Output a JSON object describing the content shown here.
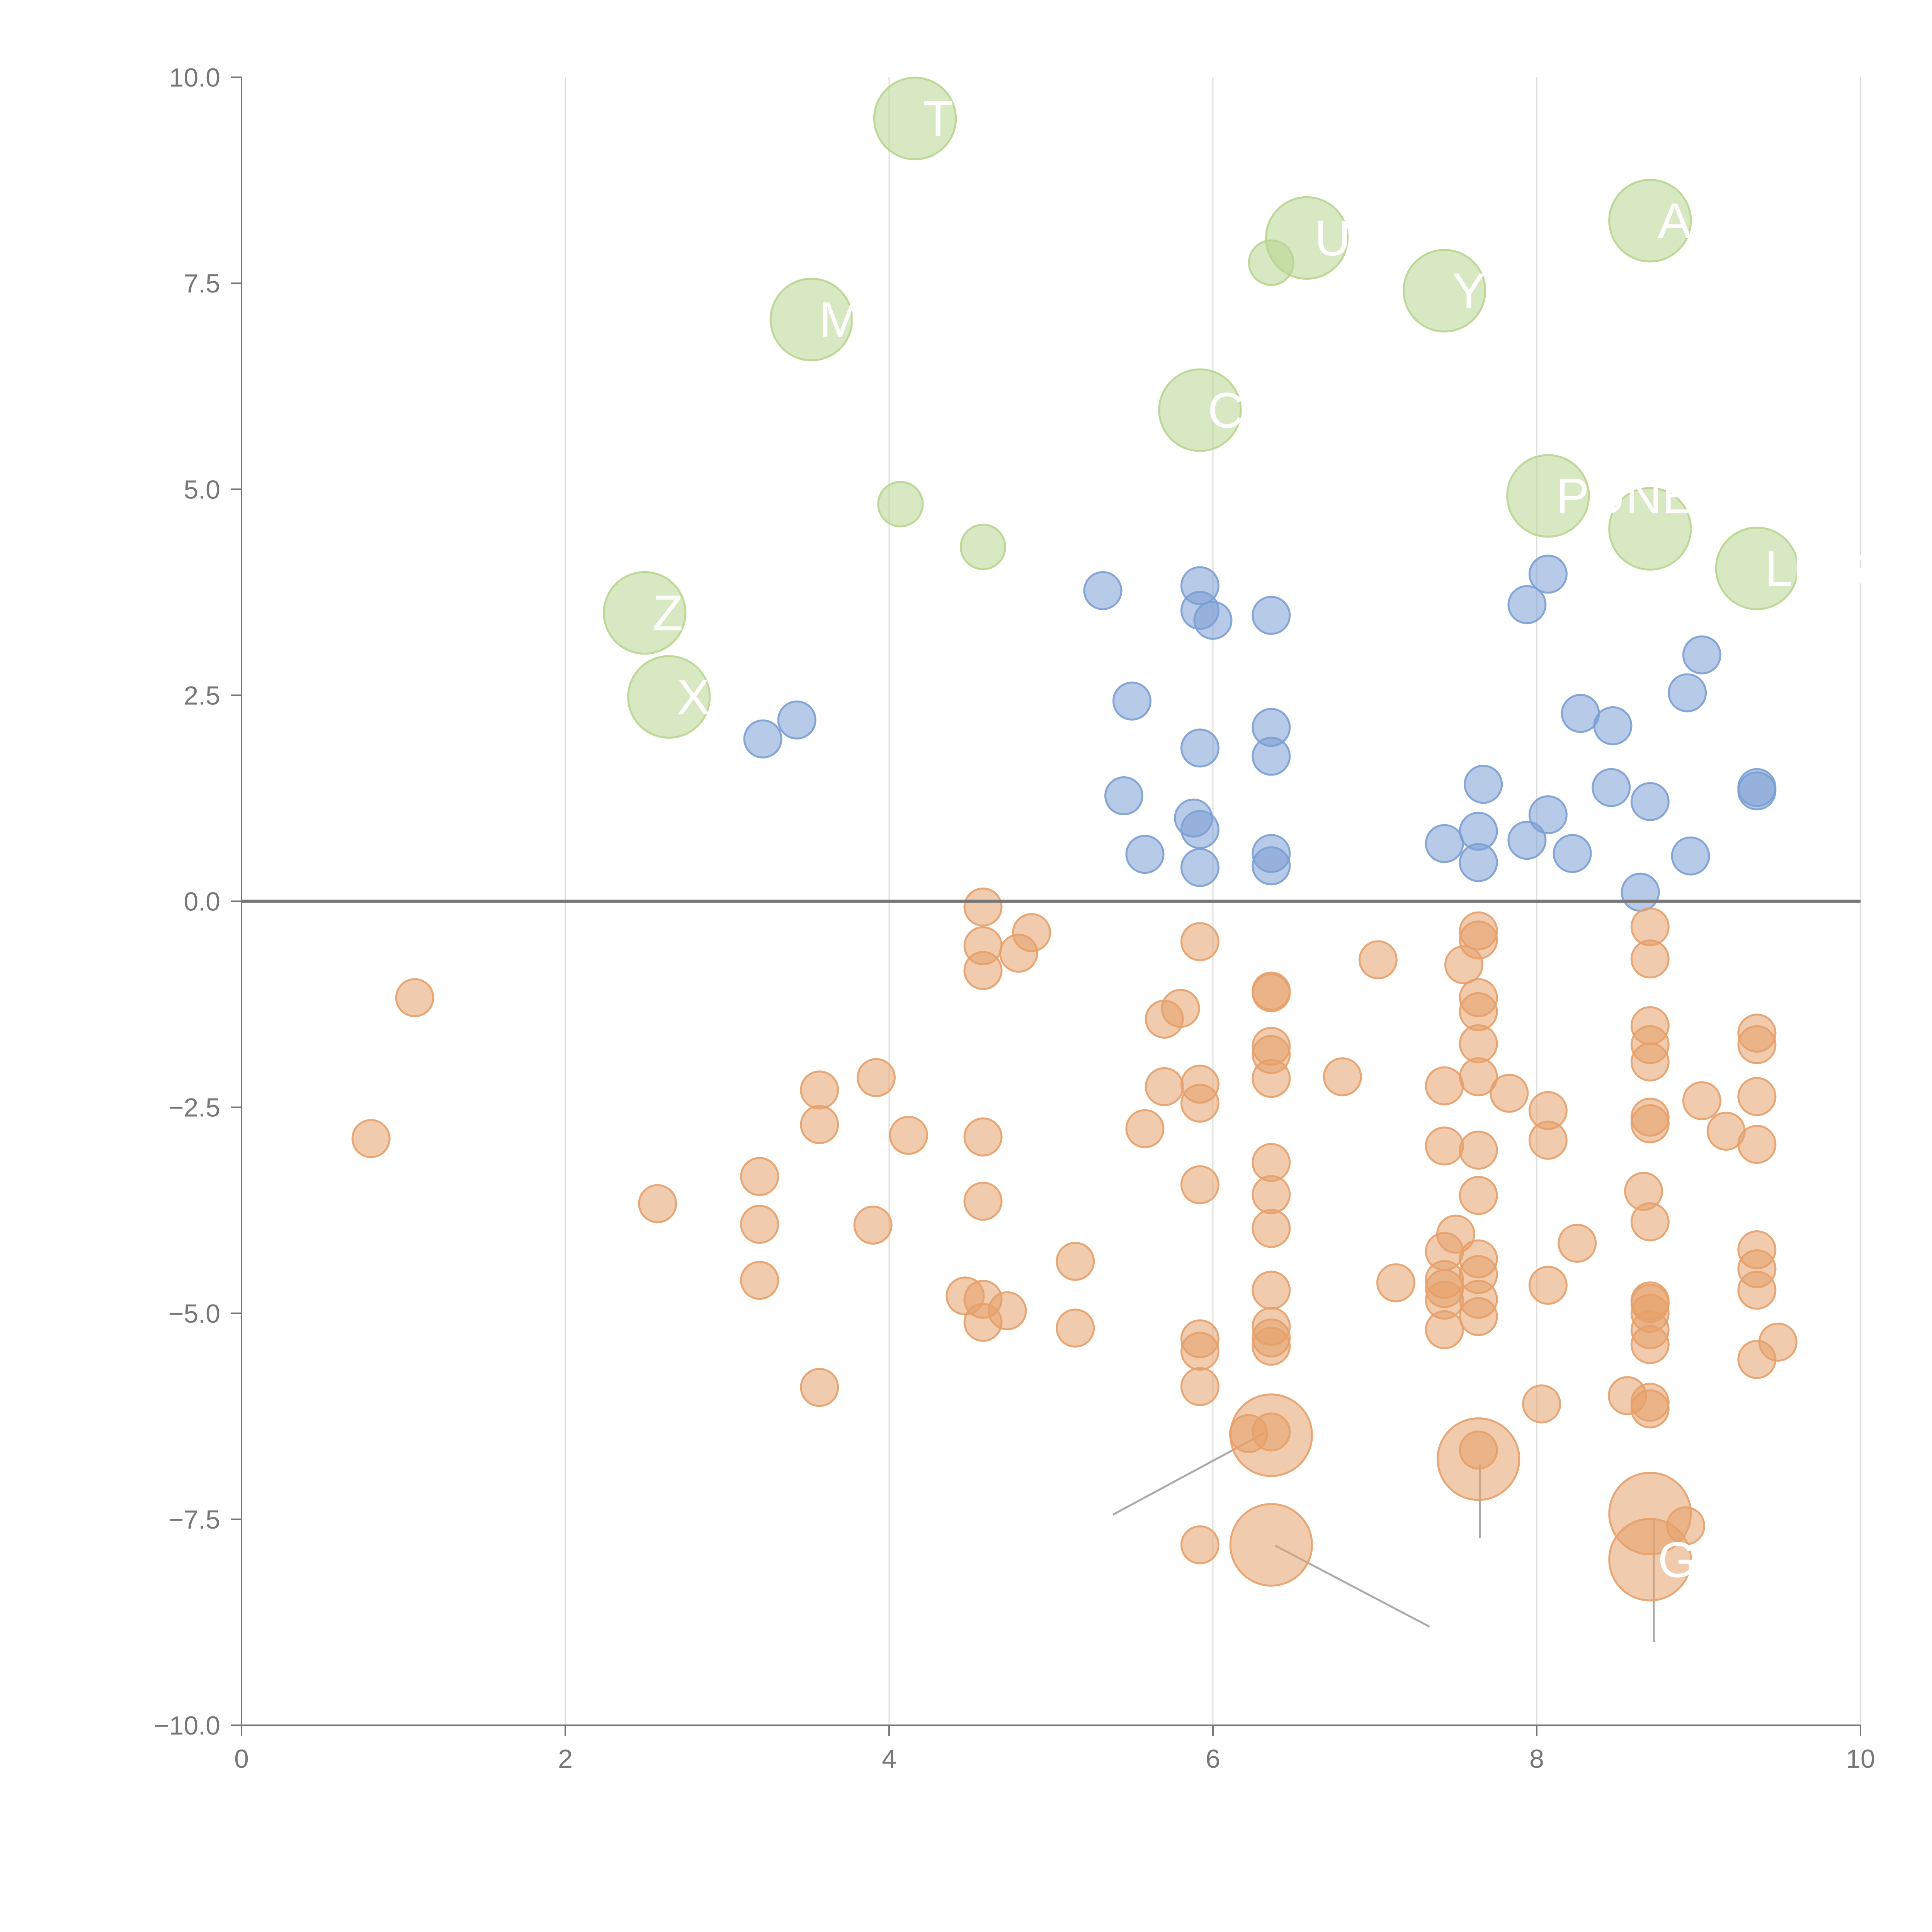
{
  "chart_data": {
    "type": "scatter",
    "title": "",
    "xlabel": "",
    "ylabel": "",
    "xlim": [
      0,
      10
    ],
    "ylim": [
      -10,
      10
    ],
    "x_ticks": [
      0,
      2,
      4,
      6,
      8,
      10
    ],
    "y_ticks": [
      10.0,
      7.5,
      5.0,
      2.5,
      0.0,
      -2.5,
      -5.0,
      -7.5,
      -10.0
    ],
    "x_tick_labels": [
      "0",
      "2",
      "4",
      "6",
      "8",
      "10"
    ],
    "y_tick_labels": [
      "10.0",
      "7.5",
      "5.0",
      "2.5",
      "0.0",
      "−2.5",
      "−5.0",
      "−7.5",
      "−10.0"
    ],
    "x_grid": true,
    "y_grid": false,
    "zero_line": true,
    "colors": {
      "blue": "#7B9FD3",
      "orange": "#E5A06A",
      "green": "#B8D58F",
      "axis": "#777777",
      "grid": "#DDDDDD"
    },
    "series": [
      {
        "name": "blue",
        "color": "#7B9FD3",
        "size": 1,
        "points": [
          [
            3.22,
            1.97
          ],
          [
            3.43,
            2.2
          ],
          [
            5.32,
            3.77
          ],
          [
            5.92,
            3.83
          ],
          [
            5.92,
            3.53
          ],
          [
            6.0,
            3.41
          ],
          [
            6.36,
            3.47
          ],
          [
            5.5,
            2.43
          ],
          [
            5.92,
            1.86
          ],
          [
            6.36,
            2.11
          ],
          [
            6.36,
            1.76
          ],
          [
            5.45,
            1.28
          ],
          [
            5.88,
            1.01
          ],
          [
            5.92,
            0.87
          ],
          [
            5.58,
            0.57
          ],
          [
            5.92,
            0.41
          ],
          [
            6.36,
            0.58
          ],
          [
            6.36,
            0.43
          ],
          [
            7.94,
            3.6
          ],
          [
            8.07,
            3.97
          ],
          [
            8.27,
            2.28
          ],
          [
            8.47,
            2.13
          ],
          [
            8.93,
            2.53
          ],
          [
            9.02,
            2.99
          ],
          [
            7.67,
            1.42
          ],
          [
            8.07,
            1.05
          ],
          [
            8.46,
            1.38
          ],
          [
            8.7,
            1.21
          ],
          [
            9.36,
            1.38
          ],
          [
            9.36,
            1.34
          ],
          [
            7.43,
            0.7
          ],
          [
            7.64,
            0.85
          ],
          [
            7.64,
            0.47
          ],
          [
            7.94,
            0.74
          ],
          [
            8.22,
            0.58
          ],
          [
            8.64,
            0.11
          ],
          [
            8.95,
            0.55
          ]
        ]
      },
      {
        "name": "green",
        "color": "#B8D58F",
        "points": [
          [
            4.16,
            9.5,
            2.2
          ],
          [
            6.58,
            8.05,
            2.2
          ],
          [
            6.36,
            7.75,
            1.2
          ],
          [
            7.43,
            7.41,
            2.2
          ],
          [
            8.7,
            8.26,
            2.2
          ],
          [
            3.52,
            7.06,
            2.2
          ],
          [
            5.92,
            5.96,
            2.2
          ],
          [
            4.07,
            4.82,
            1.2
          ],
          [
            4.58,
            4.3,
            1.2
          ],
          [
            8.07,
            4.92,
            2.2
          ],
          [
            8.7,
            4.52,
            2.2
          ],
          [
            9.36,
            4.04,
            2.2
          ],
          [
            2.49,
            3.5,
            2.2
          ],
          [
            2.64,
            2.48,
            2.2
          ]
        ]
      },
      {
        "name": "orange",
        "color": "#E5A06A",
        "points": [
          [
            1.07,
            -1.17,
            1
          ],
          [
            0.8,
            -2.88,
            1
          ],
          [
            2.57,
            -3.67,
            1
          ],
          [
            3.2,
            -3.34,
            1
          ],
          [
            3.2,
            -3.92,
            1
          ],
          [
            3.2,
            -4.6,
            1
          ],
          [
            3.57,
            -2.29,
            1
          ],
          [
            3.57,
            -2.71,
            1
          ],
          [
            3.57,
            -5.9,
            1
          ],
          [
            3.92,
            -2.14,
            1
          ],
          [
            3.9,
            -3.93,
            1
          ],
          [
            4.12,
            -2.84,
            1
          ],
          [
            4.58,
            -0.07,
            1
          ],
          [
            4.58,
            -0.54,
            1
          ],
          [
            4.58,
            -0.84,
            1
          ],
          [
            4.88,
            -0.38,
            1
          ],
          [
            4.8,
            -0.63,
            1
          ],
          [
            4.58,
            -2.86,
            1
          ],
          [
            4.58,
            -3.64,
            1
          ],
          [
            4.47,
            -4.79,
            1
          ],
          [
            4.58,
            -4.83,
            1
          ],
          [
            4.73,
            -4.97,
            1
          ],
          [
            4.58,
            -5.11,
            1
          ],
          [
            5.15,
            -4.37,
            1
          ],
          [
            5.15,
            -5.18,
            1
          ],
          [
            5.8,
            -1.3,
            1
          ],
          [
            5.7,
            -1.43,
            1
          ],
          [
            5.92,
            -0.49,
            1
          ],
          [
            5.7,
            -2.25,
            1
          ],
          [
            5.92,
            -2.22,
            1
          ],
          [
            5.92,
            -2.45,
            1
          ],
          [
            5.58,
            -2.76,
            1
          ],
          [
            5.92,
            -3.44,
            1
          ],
          [
            5.92,
            -5.31,
            1
          ],
          [
            5.92,
            -5.46,
            1
          ],
          [
            5.92,
            -5.89,
            1
          ],
          [
            6.22,
            -6.46,
            1
          ],
          [
            5.92,
            -7.81,
            1
          ],
          [
            6.36,
            -1.09,
            1
          ],
          [
            6.36,
            -1.11,
            1
          ],
          [
            6.36,
            -1.76,
            1
          ],
          [
            6.36,
            -1.86,
            1
          ],
          [
            6.36,
            -2.15,
            1
          ],
          [
            6.36,
            -3.17,
            1
          ],
          [
            6.36,
            -3.56,
            1
          ],
          [
            6.36,
            -3.97,
            1
          ],
          [
            6.36,
            -4.72,
            1
          ],
          [
            6.36,
            -5.16,
            1
          ],
          [
            6.36,
            -5.3,
            1
          ],
          [
            6.36,
            -5.4,
            1
          ],
          [
            6.36,
            -6.44,
            1
          ],
          [
            6.36,
            -6.48,
            2.2
          ],
          [
            6.36,
            -7.81,
            2.2
          ],
          [
            6.8,
            -2.13,
            1
          ],
          [
            7.02,
            -0.71,
            1
          ],
          [
            7.13,
            -4.63,
            1
          ],
          [
            7.43,
            -2.24,
            1
          ],
          [
            7.43,
            -2.97,
            1
          ],
          [
            7.5,
            -4.04,
            1
          ],
          [
            7.43,
            -4.25,
            1
          ],
          [
            7.43,
            -4.59,
            1
          ],
          [
            7.43,
            -4.7,
            1
          ],
          [
            7.43,
            -4.84,
            1
          ],
          [
            7.43,
            -5.2,
            1
          ],
          [
            7.55,
            -0.77,
            1
          ],
          [
            7.64,
            -0.36,
            1
          ],
          [
            7.64,
            -0.47,
            1
          ],
          [
            7.64,
            -1.17,
            1
          ],
          [
            7.64,
            -1.34,
            1
          ],
          [
            7.64,
            -1.73,
            1
          ],
          [
            7.64,
            -2.13,
            1
          ],
          [
            7.64,
            -3.02,
            1
          ],
          [
            7.64,
            -3.57,
            1
          ],
          [
            7.64,
            -4.34,
            1
          ],
          [
            7.64,
            -4.53,
            1
          ],
          [
            7.64,
            -4.83,
            1
          ],
          [
            7.64,
            -5.04,
            1
          ],
          [
            7.64,
            -6.66,
            1
          ],
          [
            7.64,
            -6.77,
            2.2
          ],
          [
            7.83,
            -2.33,
            1
          ],
          [
            8.07,
            -2.54,
            1
          ],
          [
            8.07,
            -2.9,
            1
          ],
          [
            8.07,
            -4.66,
            1
          ],
          [
            8.03,
            -6.1,
            1
          ],
          [
            8.25,
            -4.15,
            1
          ],
          [
            8.56,
            -6.0,
            1
          ],
          [
            8.7,
            -0.31,
            1
          ],
          [
            8.7,
            -0.7,
            1
          ],
          [
            8.7,
            -1.51,
            1
          ],
          [
            8.7,
            -1.74,
            1
          ],
          [
            8.7,
            -1.95,
            1
          ],
          [
            8.7,
            -2.62,
            1
          ],
          [
            8.7,
            -2.7,
            1
          ],
          [
            8.66,
            -3.52,
            1
          ],
          [
            8.7,
            -3.89,
            1
          ],
          [
            8.7,
            -4.85,
            1
          ],
          [
            8.7,
            -4.88,
            1
          ],
          [
            8.7,
            -5.0,
            1
          ],
          [
            8.7,
            -5.2,
            1
          ],
          [
            8.7,
            -5.38,
            1
          ],
          [
            8.7,
            -6.08,
            1
          ],
          [
            8.7,
            -6.16,
            1
          ],
          [
            8.7,
            -7.43,
            2.2
          ],
          [
            8.92,
            -7.58,
            1
          ],
          [
            8.7,
            -7.99,
            2.2
          ],
          [
            9.02,
            -2.42,
            1
          ],
          [
            9.17,
            -2.79,
            1
          ],
          [
            9.36,
            -1.6,
            1
          ],
          [
            9.36,
            -1.74,
            1
          ],
          [
            9.36,
            -2.37,
            1
          ],
          [
            9.36,
            -2.95,
            1
          ],
          [
            9.36,
            -4.23,
            1
          ],
          [
            9.36,
            -4.46,
            1
          ],
          [
            9.36,
            -4.72,
            1
          ],
          [
            9.36,
            -5.56,
            1
          ],
          [
            9.49,
            -5.35,
            1
          ]
        ]
      }
    ],
    "annotations": [
      {
        "text": "T",
        "x": 4.16,
        "y": 9.5
      },
      {
        "text": "U",
        "x": 6.58,
        "y": 8.05
      },
      {
        "text": "Y",
        "x": 7.43,
        "y": 7.41
      },
      {
        "text": "A",
        "x": 8.7,
        "y": 8.26
      },
      {
        "text": "M",
        "x": 3.52,
        "y": 7.06
      },
      {
        "text": "C",
        "x": 5.92,
        "y": 5.96
      },
      {
        "text": "PUNE",
        "x": 8.07,
        "y": 4.92
      },
      {
        "text": "LRG",
        "x": 9.36,
        "y": 4.04
      },
      {
        "text": "Z",
        "x": 2.49,
        "y": 3.5
      },
      {
        "text": "X",
        "x": 2.64,
        "y": 2.48
      },
      {
        "text": "G",
        "x": 8.7,
        "y": -7.99
      }
    ]
  }
}
